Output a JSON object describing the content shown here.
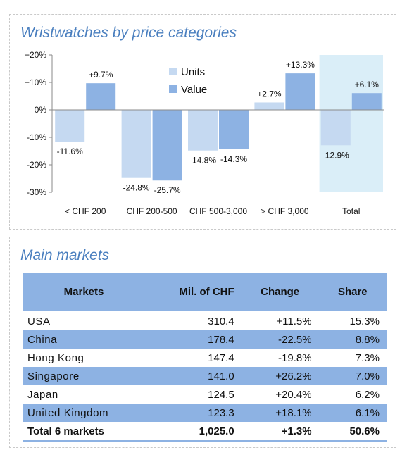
{
  "chart_panel": {
    "title": "Wristwatches by price categories"
  },
  "chart_data": {
    "type": "bar",
    "title": "Wristwatches by price categories",
    "categories": [
      "< CHF 200",
      "CHF 200-500",
      "CHF 500-3,000",
      "> CHF 3,000",
      "Total"
    ],
    "series": [
      {
        "name": "Units",
        "values": [
          -11.6,
          -24.8,
          -14.8,
          2.7,
          -12.9
        ],
        "labels": [
          "-11.6%",
          "-24.8%",
          "-14.8%",
          "+2.7%",
          "-12.9%"
        ],
        "color": "#c5d9f1"
      },
      {
        "name": "Value",
        "values": [
          9.7,
          -25.7,
          -14.3,
          13.3,
          6.1
        ],
        "labels": [
          "+9.7%",
          "-25.7%",
          "-14.3%",
          "+13.3%",
          "+6.1%"
        ],
        "color": "#8db2e3"
      }
    ],
    "y_ticks": [
      "+20%",
      "+10%",
      "0%",
      "-10%",
      "-20%",
      "-30%"
    ],
    "ylim": [
      -30,
      20
    ],
    "legend_position": "top-center",
    "highlight_category": "Total",
    "highlight_color": "#daeef8",
    "grid": false
  },
  "table_panel": {
    "title": "Main markets",
    "headers": {
      "market": "Markets",
      "mil": "Mil. of CHF",
      "change": "Change",
      "share": "Share"
    },
    "rows": [
      {
        "market": "USA",
        "mil": "310.4",
        "change": "+11.5%",
        "share": "15.3%"
      },
      {
        "market": "China",
        "mil": "178.4",
        "change": "-22.5%",
        "share": "8.8%"
      },
      {
        "market": "Hong Kong",
        "mil": "147.4",
        "change": "-19.8%",
        "share": "7.3%"
      },
      {
        "market": "Singapore",
        "mil": "141.0",
        "change": "+26.2%",
        "share": "7.0%"
      },
      {
        "market": "Japan",
        "mil": "124.5",
        "change": "+20.4%",
        "share": "6.2%"
      },
      {
        "market": "United Kingdom",
        "mil": "123.3",
        "change": "+18.1%",
        "share": "6.1%"
      }
    ],
    "total": {
      "market": "Total 6 markets",
      "mil": "1,025.0",
      "change": "+1.3%",
      "share": "50.6%"
    }
  }
}
